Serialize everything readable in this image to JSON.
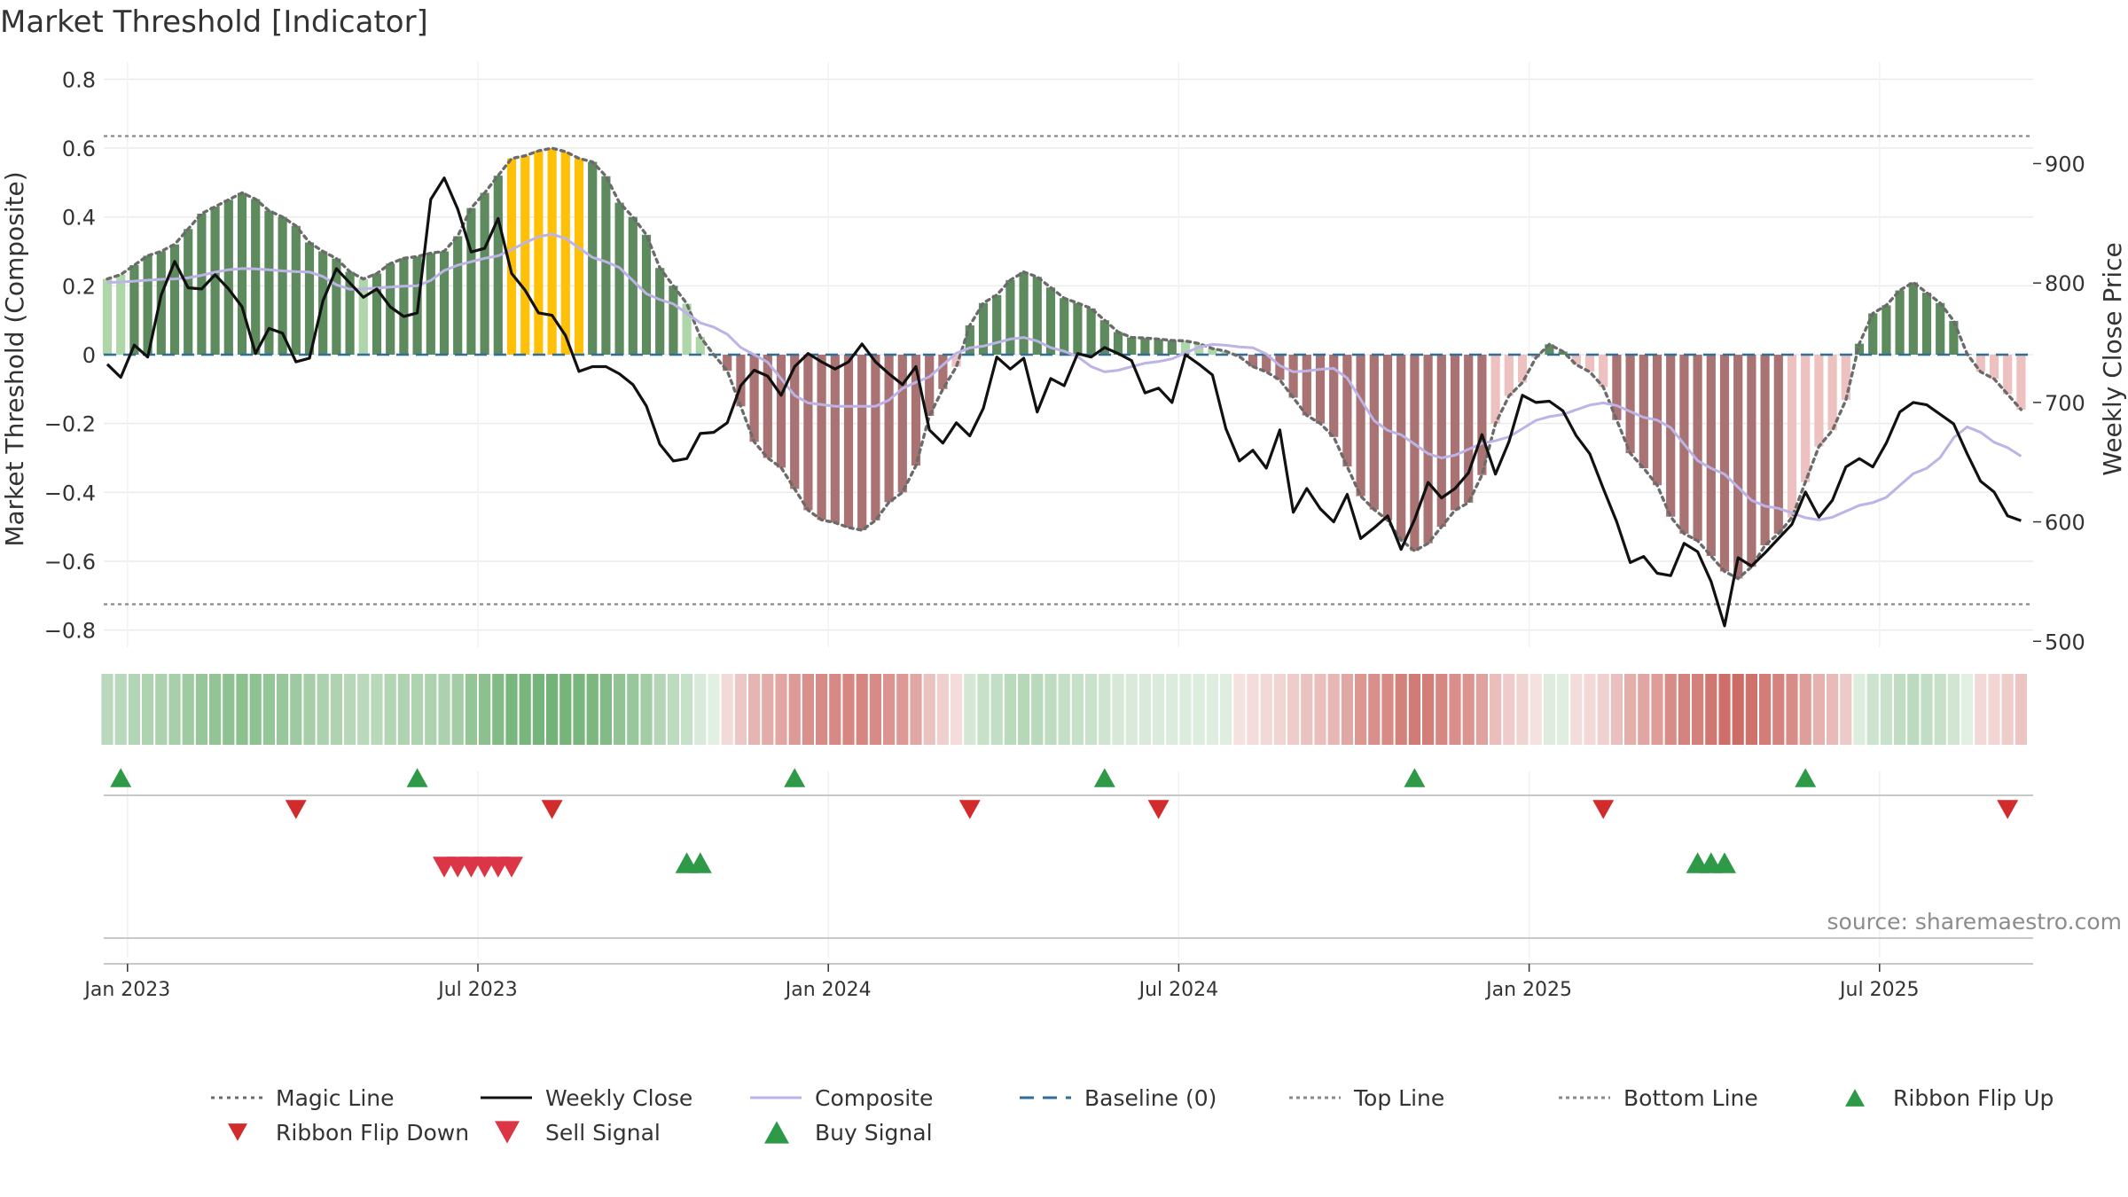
{
  "chart_data": {
    "type": "bar+line",
    "title": "Market Threshold [Indicator]",
    "ylabel": "Market Threshold (Composite)",
    "y2label": "Weekly Close Price",
    "ylim": [
      -0.85,
      0.85
    ],
    "y2lim": [
      495,
      985
    ],
    "yticks": [
      0.8,
      0.6,
      0.4,
      0.2,
      0,
      -0.2,
      -0.4,
      -0.6,
      -0.8
    ],
    "ytick_labels": [
      "0.8",
      "0.6",
      "0.4",
      "0.2",
      "0",
      "−0.2",
      "−0.4",
      "−0.6",
      "−0.8"
    ],
    "y2ticks": [
      900,
      800,
      700,
      600,
      500
    ],
    "y2tick_labels": [
      "900",
      "800",
      "700",
      "600",
      "500"
    ],
    "x_months": [
      "Jan 2023",
      "Jul 2023",
      "Jan 2024",
      "Jul 2024",
      "Jan 2025",
      "Jul 2025"
    ],
    "x_month_week_index": [
      1.5,
      27.5,
      53.5,
      79.5,
      105.5,
      131.5
    ],
    "weeks_count": 143,
    "top_line": 0.635,
    "bottom_line": -0.725,
    "baseline": 0,
    "source": "source: sharemaestro.com",
    "composite_anchors": [
      [
        0,
        0.21
      ],
      [
        5,
        0.22
      ],
      [
        10,
        0.25
      ],
      [
        15,
        0.24
      ],
      [
        18,
        0.19
      ],
      [
        23,
        0.2
      ],
      [
        26,
        0.26
      ],
      [
        28,
        0.28
      ],
      [
        33,
        0.35
      ],
      [
        37,
        0.27
      ],
      [
        41,
        0.16
      ],
      [
        45,
        0.08
      ],
      [
        48,
        0.0
      ],
      [
        52,
        -0.14
      ],
      [
        54,
        -0.15
      ],
      [
        57,
        -0.15
      ],
      [
        60,
        -0.08
      ],
      [
        64,
        0.02
      ],
      [
        68,
        0.05
      ],
      [
        71,
        0.01
      ],
      [
        74,
        -0.05
      ],
      [
        78,
        -0.02
      ],
      [
        82,
        0.03
      ],
      [
        85,
        0.02
      ],
      [
        88,
        -0.05
      ],
      [
        91,
        -0.04
      ],
      [
        95,
        -0.22
      ],
      [
        99,
        -0.3
      ],
      [
        103,
        -0.25
      ],
      [
        107,
        -0.18
      ],
      [
        111,
        -0.14
      ],
      [
        115,
        -0.19
      ],
      [
        119,
        -0.33
      ],
      [
        123,
        -0.44
      ],
      [
        127,
        -0.48
      ],
      [
        131,
        -0.43
      ],
      [
        135,
        -0.33
      ],
      [
        138,
        -0.21
      ],
      [
        141,
        -0.27
      ],
      [
        143,
        -0.32
      ]
    ],
    "magic_anchors": [
      [
        0,
        0.22
      ],
      [
        4,
        0.3
      ],
      [
        8,
        0.43
      ],
      [
        10,
        0.47
      ],
      [
        13,
        0.4
      ],
      [
        16,
        0.3
      ],
      [
        19,
        0.22
      ],
      [
        22,
        0.28
      ],
      [
        25,
        0.3
      ],
      [
        28,
        0.47
      ],
      [
        30,
        0.57
      ],
      [
        33,
        0.6
      ],
      [
        36,
        0.56
      ],
      [
        39,
        0.4
      ],
      [
        42,
        0.2
      ],
      [
        45,
        0.0
      ],
      [
        49,
        -0.3
      ],
      [
        53,
        -0.48
      ],
      [
        56,
        -0.51
      ],
      [
        59,
        -0.4
      ],
      [
        62,
        -0.1
      ],
      [
        65,
        0.15
      ],
      [
        68,
        0.24
      ],
      [
        72,
        0.15
      ],
      [
        76,
        0.05
      ],
      [
        80,
        0.04
      ],
      [
        83,
        0.01
      ],
      [
        86,
        -0.05
      ],
      [
        90,
        -0.2
      ],
      [
        94,
        -0.45
      ],
      [
        97,
        -0.57
      ],
      [
        101,
        -0.43
      ],
      [
        104,
        -0.12
      ],
      [
        107,
        0.03
      ],
      [
        110,
        -0.05
      ],
      [
        114,
        -0.33
      ],
      [
        117,
        -0.52
      ],
      [
        121,
        -0.65
      ],
      [
        124,
        -0.52
      ],
      [
        128,
        -0.22
      ],
      [
        131,
        0.12
      ],
      [
        134,
        0.21
      ],
      [
        136,
        0.15
      ],
      [
        139,
        -0.05
      ],
      [
        143,
        -0.18
      ]
    ],
    "weekly_close": [
      732,
      721,
      748,
      738,
      790,
      818,
      796,
      795,
      807,
      795,
      780,
      741,
      762,
      758,
      734,
      737,
      785,
      812,
      800,
      788,
      795,
      780,
      772,
      775,
      870,
      888,
      862,
      826,
      829,
      854,
      808,
      794,
      775,
      773,
      756,
      726,
      730,
      730,
      724,
      715,
      697,
      665,
      651,
      653,
      674,
      675,
      683,
      714,
      727,
      722,
      706,
      730,
      741,
      734,
      728,
      734,
      749,
      734,
      724,
      715,
      730,
      677,
      666,
      683,
      672,
      695,
      738,
      728,
      737,
      692,
      720,
      714,
      741,
      738,
      746,
      741,
      735,
      708,
      712,
      700,
      740,
      732,
      723,
      678,
      651,
      660,
      645,
      677,
      608,
      628,
      611,
      600,
      623,
      586,
      595,
      605,
      577,
      602,
      633,
      620,
      628,
      641,
      673,
      640,
      667,
      706,
      700,
      701,
      693,
      672,
      657,
      628,
      600,
      566,
      571,
      557,
      555,
      582,
      575,
      550,
      513,
      570,
      563,
      574,
      586,
      598,
      625,
      604,
      618,
      646,
      653,
      646,
      666,
      692,
      700,
      698,
      690,
      682,
      657,
      634,
      625,
      605,
      601
    ],
    "series": [
      {
        "name": "Magic Line",
        "style": "dotted",
        "color": "#6b6b6b"
      },
      {
        "name": "Weekly Close",
        "style": "solid",
        "color": "#111111"
      },
      {
        "name": "Composite",
        "style": "solid",
        "color": "#bdb3e6"
      },
      {
        "name": "Baseline (0)",
        "style": "dashed",
        "color": "#2f6e98"
      },
      {
        "name": "Top Line",
        "style": "dotted",
        "color": "#8a8a8a"
      },
      {
        "name": "Bottom Line",
        "style": "dotted",
        "color": "#8a8a8a"
      },
      {
        "name": "Ribbon Flip Up",
        "marker": "triangle-up",
        "color": "#2e9a47"
      },
      {
        "name": "Ribbon Flip Down",
        "marker": "triangle-down",
        "color": "#d12b2b"
      },
      {
        "name": "Sell Signal",
        "marker": "triangle-down",
        "color": "#dc3545"
      },
      {
        "name": "Buy Signal",
        "marker": "triangle-up",
        "color": "#2e9a47"
      }
    ],
    "ribbon_flip_up_weeks": [
      1,
      23,
      51,
      74,
      97,
      126
    ],
    "ribbon_flip_down_weeks": [
      14,
      33,
      64,
      78,
      111,
      141
    ],
    "sell_signal_weeks": [
      25,
      26,
      27,
      28,
      29,
      30
    ],
    "buy_signal_weeks": [
      43,
      44,
      118,
      119,
      120
    ],
    "colors": {
      "pos_strong": "#5e8b5e",
      "pos_light": "#afd6a8",
      "neg_strong": "#a87372",
      "neg_light": "#ecc1bf",
      "extreme": "#ffc107",
      "ribbon_green": "#5fb56f",
      "ribbon_red": "#c9605a",
      "grid": "#ebebeb"
    }
  }
}
